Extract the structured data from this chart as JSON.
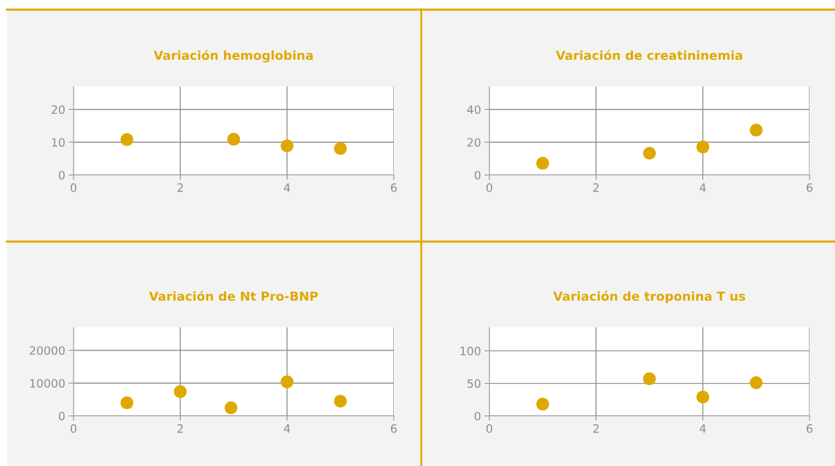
{
  "chart_data": [
    {
      "type": "scatter",
      "title": "Variación hemoglobina",
      "x": [
        1,
        3,
        4,
        5
      ],
      "series": [
        {
          "color": "#dfa800",
          "values": [
            10.8,
            10.9,
            8.9,
            8.1
          ]
        }
      ],
      "xlim": [
        0,
        6
      ],
      "xticks": [
        0,
        2,
        4,
        6
      ],
      "ylim": [
        0,
        27
      ],
      "yticks": [
        0,
        10,
        20
      ],
      "grid": true,
      "marker": "circle"
    },
    {
      "type": "scatter",
      "title": "Variación de creatininemia",
      "x": [
        1,
        3,
        4,
        5
      ],
      "series": [
        {
          "color": "#dfa800",
          "values": [
            7.2,
            13.3,
            17.1,
            27.4
          ]
        }
      ],
      "xlim": [
        0,
        6
      ],
      "xticks": [
        0,
        2,
        4,
        6
      ],
      "ylim": [
        0,
        54
      ],
      "yticks": [
        0,
        20,
        40
      ],
      "grid": true,
      "marker": "circle"
    },
    {
      "type": "scatter",
      "title": "Variación de Nt Pro-BNP",
      "x": [
        1,
        2,
        2.95,
        4,
        5
      ],
      "series": [
        {
          "color": "#dfa800",
          "values": [
            4000,
            7400,
            2500,
            10400,
            4500
          ]
        }
      ],
      "xlim": [
        0,
        6
      ],
      "xticks": [
        0,
        2,
        4,
        6
      ],
      "ylim": [
        0,
        27000
      ],
      "yticks": [
        0,
        10000,
        20000
      ],
      "grid": true,
      "marker": "circle"
    },
    {
      "type": "scatter",
      "title": "Variación de troponina T us",
      "x": [
        1,
        3,
        4,
        5
      ],
      "series": [
        {
          "color": "#dfa800",
          "values": [
            18,
            57,
            29,
            51
          ]
        }
      ],
      "xlim": [
        0,
        6
      ],
      "xticks": [
        0,
        2,
        4,
        6
      ],
      "ylim": [
        0,
        136
      ],
      "yticks": [
        0,
        50,
        100
      ],
      "grid": true,
      "marker": "circle"
    }
  ]
}
